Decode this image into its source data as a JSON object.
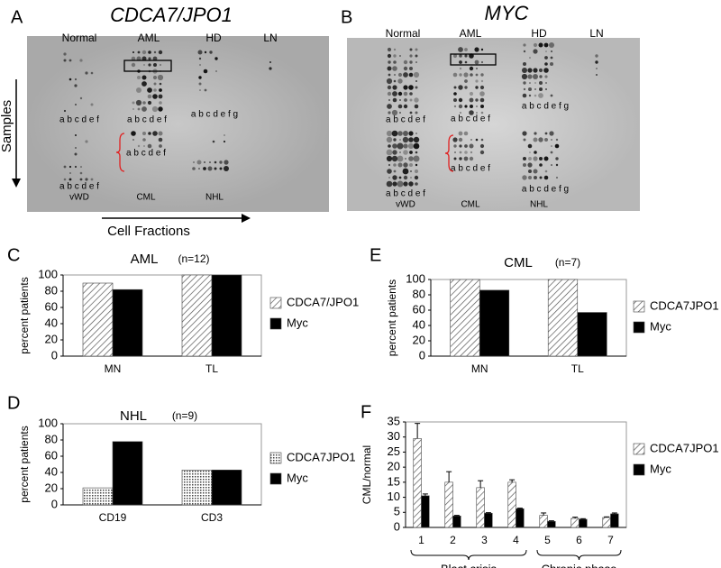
{
  "panel_labels": [
    "A",
    "B",
    "C",
    "D",
    "E",
    "F"
  ],
  "blots": [
    {
      "title": "CDCA7/JPO1",
      "columns": [
        "Normal",
        "AML",
        "HD",
        "LN"
      ],
      "lane_labels": [
        "a b c d e f",
        "a b c d e f",
        "a b c d e f g",
        "a b c d e f",
        "a b c d e f"
      ],
      "row_labels": [
        "vWD",
        "CML",
        "NHL"
      ]
    },
    {
      "title": "MYC",
      "columns": [
        "Normal",
        "AML",
        "HD",
        "LN"
      ],
      "lane_labels": [
        "a b c d e f",
        "a b c d e f",
        "a b c d e f g",
        "a b c d e f",
        "a b c d e f",
        "a b c d e f g"
      ],
      "row_labels": [
        "vWD",
        "CML",
        "NHL"
      ]
    }
  ],
  "axis_labels": {
    "samples": "Samples",
    "cell_fractions": "Cell Fractions"
  },
  "chart_data": [
    {
      "type": "bar",
      "title": "AML",
      "subtitle": "(n=12)",
      "ylabel": "percent patients",
      "categories": [
        "MN",
        "TL"
      ],
      "ylim": [
        0,
        100
      ],
      "yticks": [
        0,
        20,
        40,
        60,
        80,
        100
      ],
      "series": [
        {
          "name": "CDCA7/JPO1",
          "color": "#ffffff",
          "pattern": "hatch",
          "values": [
            90,
            100
          ]
        },
        {
          "name": "Myc",
          "color": "#000000",
          "values": [
            82,
            100
          ]
        }
      ]
    },
    {
      "type": "bar",
      "title": "NHL",
      "subtitle": "(n=9)",
      "ylabel": "percent patients",
      "categories": [
        "CD19",
        "CD3"
      ],
      "ylim": [
        0,
        100
      ],
      "yticks": [
        0,
        20,
        40,
        60,
        80,
        100
      ],
      "series": [
        {
          "name": "CDCA7JPO1",
          "color": "#ffffff",
          "pattern": "dots",
          "values": [
            21,
            43
          ]
        },
        {
          "name": "Myc",
          "color": "#000000",
          "values": [
            78,
            43
          ]
        }
      ]
    },
    {
      "type": "bar",
      "title": "CML",
      "subtitle": "(n=7)",
      "ylabel": "percent patients",
      "categories": [
        "MN",
        "TL"
      ],
      "ylim": [
        0,
        100
      ],
      "yticks": [
        0,
        20,
        40,
        60,
        80,
        100
      ],
      "series": [
        {
          "name": "CDCA7JPO1",
          "color": "#ffffff",
          "pattern": "hatch",
          "values": [
            100,
            100
          ]
        },
        {
          "name": "Myc",
          "color": "#000000",
          "values": [
            86,
            57
          ]
        }
      ]
    },
    {
      "type": "bar",
      "ylabel": "CML/normal",
      "categories": [
        "1",
        "2",
        "3",
        "4",
        "5",
        "6",
        "7"
      ],
      "ylim": [
        0,
        35
      ],
      "yticks": [
        0,
        5,
        10,
        15,
        20,
        25,
        30,
        35
      ],
      "groups": [
        {
          "label": "Blast crisis",
          "size": 4
        },
        {
          "label": "Chronic phase",
          "size": 3
        }
      ],
      "series": [
        {
          "name": "CDCA7JPO1",
          "color": "#ffffff",
          "pattern": "hatch",
          "values": [
            29.5,
            15,
            13.2,
            15,
            4,
            3,
            3.3
          ],
          "errors": [
            5,
            3.5,
            2.3,
            0.8,
            0.8,
            0.4,
            0.2
          ]
        },
        {
          "name": "Myc",
          "color": "#000000",
          "values": [
            10.5,
            3.8,
            4.7,
            6.2,
            2,
            2.7,
            4.5
          ],
          "errors": [
            0.6,
            0.2,
            0.2,
            0.2,
            0.2,
            0.2,
            0.3
          ]
        }
      ]
    }
  ]
}
